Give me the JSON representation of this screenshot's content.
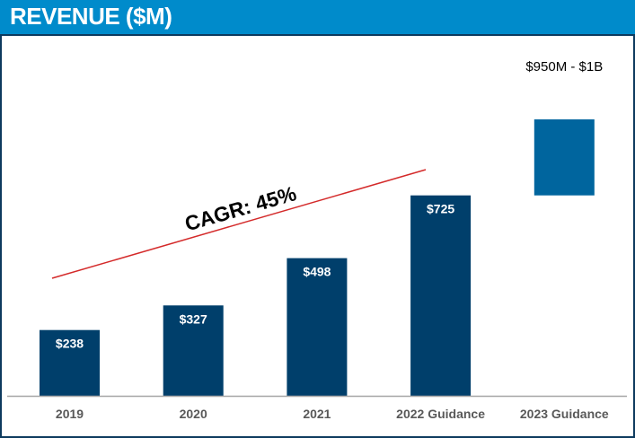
{
  "chart_data": {
    "type": "bar",
    "title": "REVENUE ($M)",
    "categories": [
      "2019",
      "2020",
      "2021",
      "2022 Guidance",
      "2023 Guidance"
    ],
    "values": [
      238,
      327,
      498,
      725,
      null
    ],
    "data_labels": [
      "$238",
      "$327",
      "$498",
      "$725",
      "$950M - $1B"
    ],
    "range_values": {
      "2023 Guidance": [
        950,
        1000
      ]
    },
    "annotation": "CAGR: 45%",
    "grid": false,
    "colors": {
      "bar": "#003F6B",
      "guidance_range_bar": "#00659E",
      "trend_line": "#D42A2A",
      "header": "#008BCB"
    }
  }
}
